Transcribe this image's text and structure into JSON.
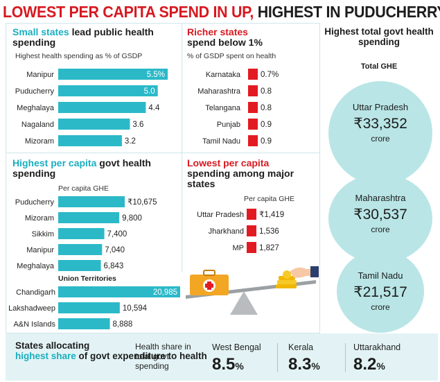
{
  "headline": {
    "part1": "LOWEST PER CAPITA SPEND IN UP,",
    "part2": " HIGHEST IN PUDUCHERRY"
  },
  "colors": {
    "accent_teal": "#2bb9c8",
    "accent_red": "#e21b23",
    "circle_fill": "#b9e5e6",
    "bottom_bg": "#e3f3f5"
  },
  "chart_data": [
    {
      "type": "bar",
      "title_a": "Small states",
      "title_b": " lead public health spending",
      "subtitle": "Highest health spending as % of GSDP",
      "categories": [
        "Manipur",
        "Puducherry",
        "Meghalaya",
        "Nagaland",
        "Mizoram"
      ],
      "values": [
        5.5,
        5.0,
        4.4,
        3.6,
        3.2
      ],
      "labels": [
        "5.5%",
        "5.0",
        "4.4",
        "3.6",
        "3.2"
      ]
    },
    {
      "type": "bar",
      "title_a": "Richer states",
      "title_b": "spend below 1%",
      "subtitle": "% of GSDP spent on health",
      "categories": [
        "Karnataka",
        "Maharashtra",
        "Telangana",
        "Punjab",
        "Tamil Nadu"
      ],
      "values": [
        0.7,
        0.8,
        0.8,
        0.9,
        0.9
      ],
      "labels": [
        "0.7%",
        "0.8",
        "0.8",
        "0.9",
        "0.9"
      ]
    },
    {
      "type": "bar",
      "title_a": "Highest per capita",
      "title_b": " govt health spending",
      "subtitle": "Per capita GHE",
      "categories": [
        "Puducherry",
        "Mizoram",
        "Sikkim",
        "Manipur",
        "Meghalaya"
      ],
      "values": [
        10675,
        9800,
        7400,
        7040,
        6843
      ],
      "labels": [
        "₹10,675",
        "9,800",
        "7,400",
        "7,040",
        "6,843"
      ],
      "ut_heading": "Union Territories",
      "ut_categories": [
        "Chandigarh",
        "Lakshadweep",
        "A&N Islands"
      ],
      "ut_values": [
        20985,
        10594,
        8888
      ],
      "ut_labels": [
        "20,985",
        "10,594",
        "8,888"
      ]
    },
    {
      "type": "bar",
      "title_a": "Lowest per capita",
      "title_b": "spending among major states",
      "subtitle": "Per capita GHE",
      "categories": [
        "Uttar Pradesh",
        "Jharkhand",
        "MP"
      ],
      "values": [
        1419,
        1536,
        1827
      ],
      "labels": [
        "₹1,419",
        "1,536",
        "1,827"
      ]
    }
  ],
  "right": {
    "title": "Highest total govt health spending",
    "subtitle": "Total GHE",
    "circles": [
      {
        "state": "Uttar Pradesh",
        "amount": "₹33,352",
        "unit": "crore"
      },
      {
        "state": "Maharashtra",
        "amount": "₹30,537",
        "unit": "crore"
      },
      {
        "state": "Tamil Nadu",
        "amount": "₹21,517",
        "unit": "crore"
      }
    ]
  },
  "bottom": {
    "title_a": "States allocating",
    "title_b": "highest share",
    "title_c": " of govt expenditure to health",
    "desc": "Health share in total govt spending",
    "items": [
      {
        "state": "West Bengal",
        "value": "8.5",
        "unit": "%"
      },
      {
        "state": "Kerala",
        "value": "8.3",
        "unit": "%"
      },
      {
        "state": "Uttarakhand",
        "value": "8.2",
        "unit": "%"
      }
    ]
  }
}
